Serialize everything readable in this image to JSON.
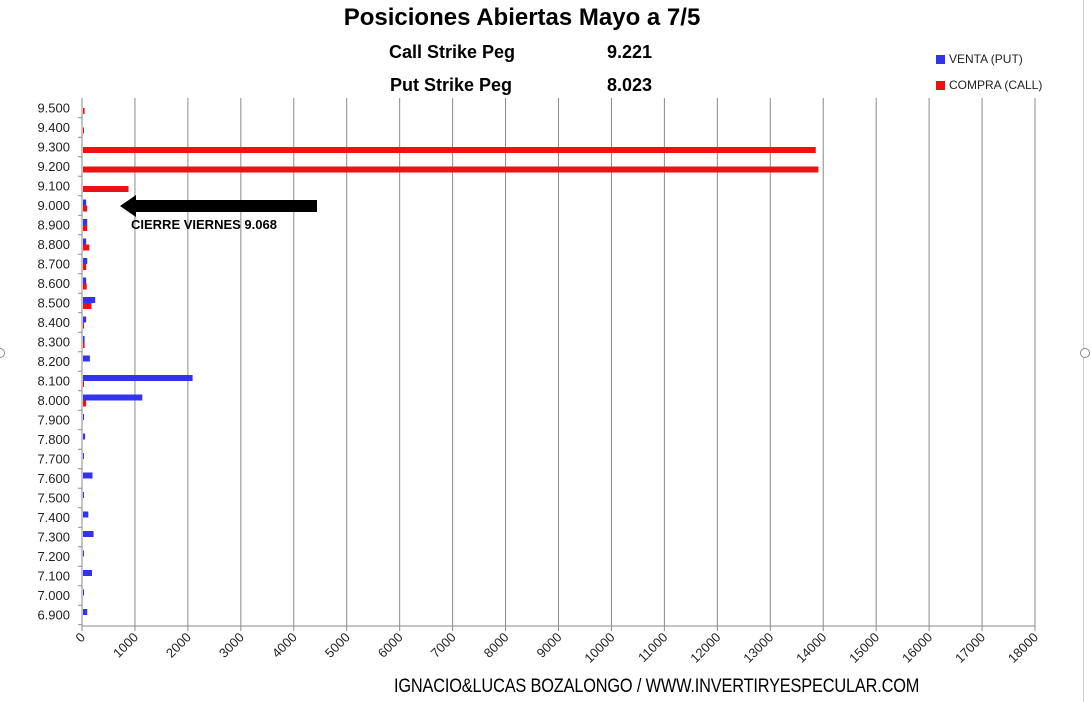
{
  "chart_data": {
    "type": "bar",
    "orientation": "horizontal",
    "title": "Posiciones Abiertas Mayo a 7/5",
    "categories": [
      "6.900",
      "7.000",
      "7.100",
      "7.200",
      "7.300",
      "7.400",
      "7.500",
      "7.600",
      "7.700",
      "7.800",
      "7.900",
      "8.000",
      "8.100",
      "8.200",
      "8.300",
      "8.400",
      "8.500",
      "8.600",
      "8.700",
      "8.800",
      "8.900",
      "9.000",
      "9.100",
      "9.200",
      "9.300",
      "9.400",
      "9.500"
    ],
    "series": [
      {
        "name": "VENTA (PUT)",
        "color": "#3333ee",
        "values": [
          80,
          20,
          170,
          10,
          200,
          100,
          15,
          180,
          10,
          40,
          20,
          1120,
          2070,
          130,
          30,
          60,
          230,
          60,
          80,
          60,
          80,
          60,
          0,
          0,
          0,
          0,
          0
        ]
      },
      {
        "name": "COMPRA (CALL)",
        "color": "#ee1111",
        "values": [
          0,
          0,
          0,
          0,
          0,
          0,
          0,
          0,
          0,
          0,
          0,
          60,
          15,
          0,
          30,
          10,
          160,
          70,
          60,
          120,
          80,
          80,
          860,
          13890,
          13840,
          15,
          30
        ]
      }
    ],
    "xlim": [
      0,
      18000
    ],
    "xticks": [
      "0",
      "1000",
      "2000",
      "3000",
      "4000",
      "5000",
      "6000",
      "7000",
      "8000",
      "9000",
      "10000",
      "11000",
      "12000",
      "13000",
      "14000",
      "15000",
      "16000",
      "17000",
      "18000"
    ],
    "grid": "vertical",
    "legend": "top-right",
    "annotation": "CIERRE VIERNES 9.068"
  },
  "pegs": {
    "call_label": "Call Strike Peg",
    "call_value": "9.221",
    "put_label": "Put Strike Peg",
    "put_value": "8.023"
  },
  "footer": "IGNACIO&LUCAS BOZALONGO / WWW.INVERTIRYESPECULAR.COM"
}
